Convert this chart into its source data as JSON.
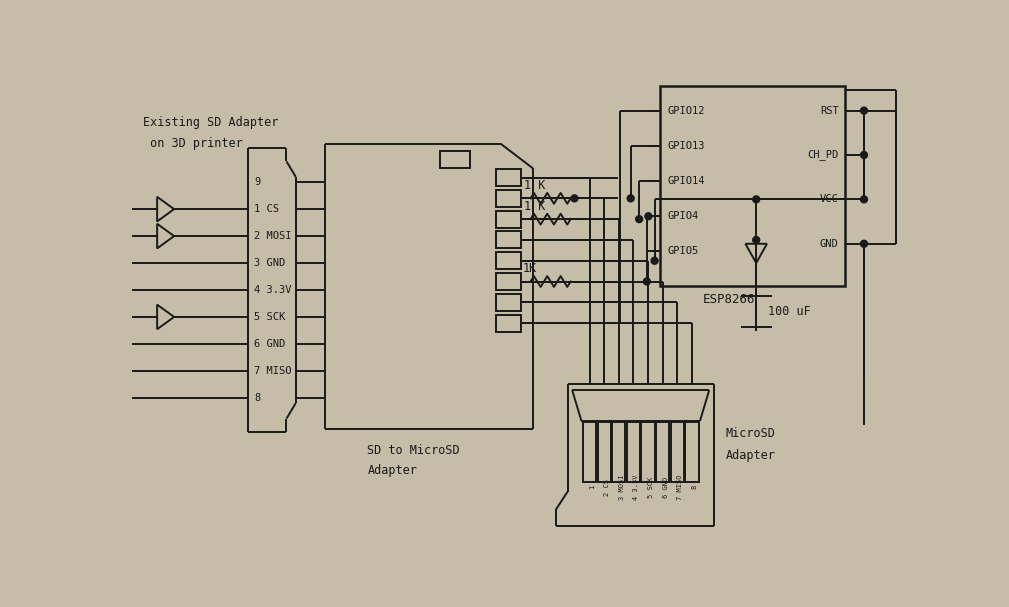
{
  "bg_color": "#c5bda8",
  "line_color": "#1a1a1a",
  "lw": 1.4,
  "sd_adapter_label1": "Existing SD Adapter",
  "sd_adapter_label2": " on 3D printer",
  "sd_to_micro_label1": "SD to MicroSD",
  "sd_to_micro_label2": "Adapter",
  "microsd_label1": "MicroSD",
  "microsd_label2": "Adapter",
  "esp_label": "ESP8266",
  "sd_pins": [
    "9",
    "1 CS",
    "2 MOSI",
    "3 GND",
    "4 3.3V",
    "5 SCK",
    "6 GND",
    "7 MISO",
    "8"
  ],
  "esp_left_pins": [
    "GPIO12",
    "GPIO13",
    "GPIO14",
    "GPIO4",
    "GPIO5"
  ],
  "esp_right_pins": [
    "RST",
    "CH_PD",
    "VCC",
    "GND"
  ],
  "cap_label": "100 uF"
}
